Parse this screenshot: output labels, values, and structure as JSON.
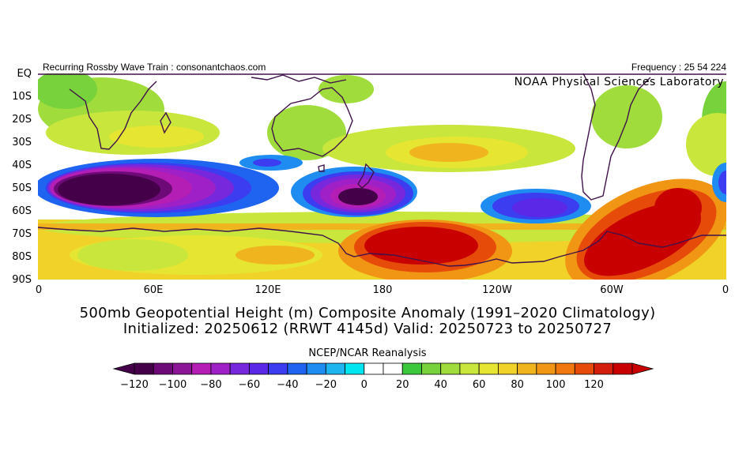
{
  "header": {
    "left_text": "Recurring Rossby Wave Train : consonantchaos.com",
    "right_text": "Frequency : 25 54 224",
    "lab": "NOAA Physical Sciences Laboratory"
  },
  "axes": {
    "lat_labels": [
      "EQ",
      "10S",
      "20S",
      "30S",
      "40S",
      "50S",
      "60S",
      "70S",
      "80S",
      "90S"
    ],
    "lon_labels": [
      "0",
      "60E",
      "120E",
      "180",
      "120W",
      "60W",
      "0"
    ]
  },
  "title": {
    "line1": "500mb Geopotential Height (m) Composite Anomaly (1991–2020 Climatology)",
    "line2": "Initialized: 20250612 (RRWT 4145d) Valid: 20250723 to 20250727"
  },
  "colorbar": {
    "title": "NCEP/NCAR Reanalysis",
    "labels": [
      "−120",
      "−100",
      "−80",
      "−60",
      "−40",
      "−20",
      "0",
      "20",
      "40",
      "60",
      "80",
      "100",
      "120"
    ],
    "colors": [
      "#45004a",
      "#6e0a78",
      "#8c1496",
      "#b41eb4",
      "#a020c8",
      "#7828dc",
      "#5a28e6",
      "#3c3cf0",
      "#1e64f0",
      "#1e8cf0",
      "#1eb4f0",
      "#00e6f0",
      "#ffffff",
      "#ffffff",
      "#3cc83c",
      "#78d23c",
      "#a0dc3c",
      "#c8e63c",
      "#e6e632",
      "#f0d228",
      "#f0b41e",
      "#f09614",
      "#f0780f",
      "#e64b0a",
      "#d21e0a",
      "#c80000"
    ]
  }
}
